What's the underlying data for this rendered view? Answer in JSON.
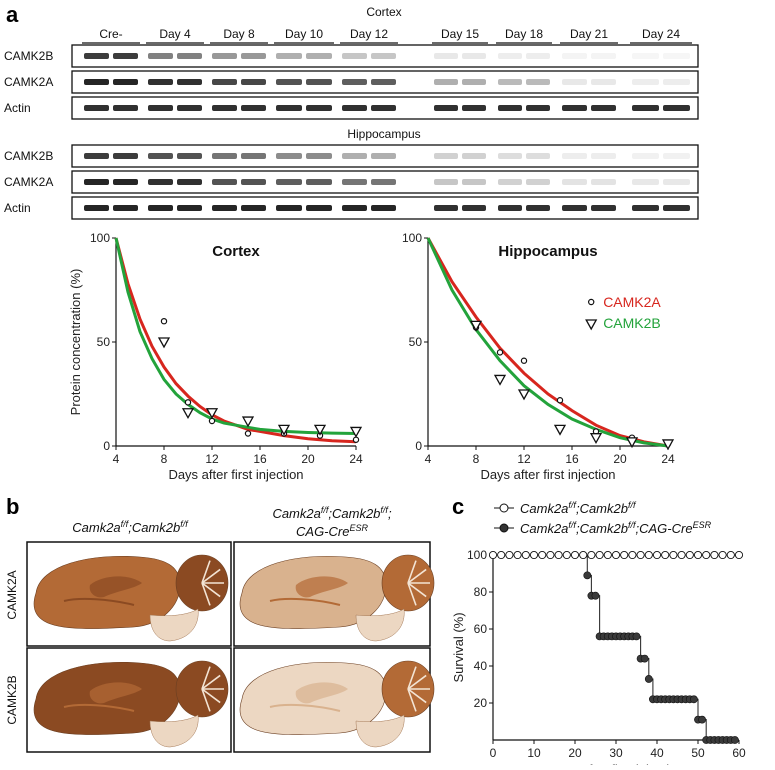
{
  "panel_labels": {
    "a": "a",
    "b": "b",
    "c": "c"
  },
  "blots": {
    "cortex_title": "Cortex",
    "hippocampus_title": "Hippocampus",
    "lane_groups": [
      "Cre-",
      "Day 4",
      "Day 8",
      "Day 10",
      "Day 12",
      "Day 15",
      "Day 18",
      "Day 21",
      "Day 24"
    ],
    "cortex_rows": [
      "CAMK2B",
      "CAMK2A",
      "Actin"
    ],
    "hippocampus_rows": [
      "CAMK2B",
      "CAMK2A",
      "Actin"
    ]
  },
  "stains": {
    "col_headers": [
      {
        "l1_base": "Camk2a",
        "l1_sup": "f/f",
        "l1_sep": ";",
        "l1_base2": "Camk2b",
        "l1_sup2": "f/f",
        "l2": ""
      },
      {
        "l1_base": "Camk2a",
        "l1_sup": "f/f",
        "l1_sep": ";",
        "l1_base2": "Camk2b",
        "l1_sup2": "f/f",
        "l1_tail": ";",
        "l2_base": "CAG-Cre",
        "l2_sup": "ESR"
      }
    ],
    "row_labels": [
      "CAMK2A",
      "CAMK2B"
    ],
    "colors": {
      "strong": "#8b4a22",
      "medium": "#b36a36",
      "weak": "#d9b28e",
      "pale": "#ecd7c2"
    }
  },
  "chart_data": [
    {
      "type": "scatter",
      "title": "Cortex",
      "ylabel": "Protein concentration (%)",
      "xlabel": "Days after first injection",
      "xlim": [
        4,
        24
      ],
      "ylim": [
        0,
        100
      ],
      "xticks": [
        4,
        8,
        12,
        16,
        20,
        24
      ],
      "yticks": [
        0,
        50,
        100
      ],
      "series": [
        {
          "name": "CAMK2A",
          "color": "#d7261e",
          "marker": "circle",
          "points": [
            [
              8,
              60
            ],
            [
              10,
              21
            ],
            [
              12,
              12
            ],
            [
              15,
              6
            ],
            [
              18,
              6
            ],
            [
              21,
              5
            ],
            [
              24,
              3
            ]
          ],
          "fit": [
            [
              4,
              100
            ],
            [
              5,
              78
            ],
            [
              6,
              61
            ],
            [
              7,
              48
            ],
            [
              8,
              38
            ],
            [
              9,
              30
            ],
            [
              10,
              24
            ],
            [
              11,
              19
            ],
            [
              12,
              15
            ],
            [
              13,
              12
            ],
            [
              14,
              10
            ],
            [
              15,
              8
            ],
            [
              16,
              7
            ],
            [
              18,
              5
            ],
            [
              20,
              3.5
            ],
            [
              22,
              2.5
            ],
            [
              24,
              2
            ]
          ]
        },
        {
          "name": "CAMK2B",
          "color": "#23a33b",
          "marker": "triangle",
          "points": [
            [
              8,
              50
            ],
            [
              10,
              16
            ],
            [
              12,
              16
            ],
            [
              15,
              12
            ],
            [
              18,
              8
            ],
            [
              21,
              8
            ],
            [
              24,
              7
            ]
          ],
          "fit": [
            [
              4,
              100
            ],
            [
              5,
              74
            ],
            [
              6,
              55
            ],
            [
              7,
              42
            ],
            [
              8,
              32
            ],
            [
              9,
              25
            ],
            [
              10,
              20
            ],
            [
              11,
              16
            ],
            [
              12,
              13
            ],
            [
              13,
              11
            ],
            [
              14,
              10
            ],
            [
              15,
              9
            ],
            [
              16,
              8
            ],
            [
              18,
              7
            ],
            [
              20,
              6.5
            ],
            [
              22,
              6.2
            ],
            [
              24,
              6
            ]
          ]
        }
      ]
    },
    {
      "type": "scatter",
      "title": "Hippocampus",
      "ylabel": "",
      "xlabel": "Days after first injection",
      "xlim": [
        4,
        24
      ],
      "ylim": [
        0,
        100
      ],
      "xticks": [
        4,
        8,
        12,
        16,
        20,
        24
      ],
      "yticks": [
        0,
        50,
        100
      ],
      "legend": [
        "CAMK2A",
        "CAMK2B"
      ],
      "series": [
        {
          "name": "CAMK2A",
          "color": "#d7261e",
          "marker": "circle",
          "points": [
            [
              8,
              57
            ],
            [
              10,
              45
            ],
            [
              12,
              41
            ],
            [
              15,
              22
            ],
            [
              18,
              7
            ],
            [
              21,
              4
            ],
            [
              24,
              1
            ]
          ],
          "fit": [
            [
              4,
              100
            ],
            [
              6,
              79
            ],
            [
              8,
              62
            ],
            [
              10,
              47
            ],
            [
              12,
              35
            ],
            [
              14,
              25
            ],
            [
              16,
              17
            ],
            [
              18,
              10
            ],
            [
              20,
              5
            ],
            [
              22,
              2
            ],
            [
              24,
              0
            ]
          ]
        },
        {
          "name": "CAMK2B",
          "color": "#23a33b",
          "marker": "triangle",
          "points": [
            [
              8,
              58
            ],
            [
              10,
              32
            ],
            [
              12,
              25
            ],
            [
              15,
              8
            ],
            [
              18,
              4
            ],
            [
              21,
              2
            ],
            [
              24,
              1
            ]
          ],
          "fit": [
            [
              4,
              100
            ],
            [
              6,
              75
            ],
            [
              8,
              56
            ],
            [
              10,
              41
            ],
            [
              12,
              29
            ],
            [
              14,
              20
            ],
            [
              16,
              13
            ],
            [
              18,
              8
            ],
            [
              20,
              4
            ],
            [
              22,
              1.5
            ],
            [
              24,
              0
            ]
          ]
        }
      ]
    },
    {
      "type": "line",
      "ylabel": "Survival (%)",
      "xlabel": "Days after first injection",
      "xlim": [
        0,
        60
      ],
      "ylim": [
        0,
        100
      ],
      "xticks": [
        0,
        10,
        20,
        30,
        40,
        50,
        60
      ],
      "yticks": [
        20,
        40,
        60,
        80,
        100
      ],
      "legend": [
        {
          "base": "Camk2a",
          "sup": "f/f",
          "sep": ";",
          "base2": "Camk2b",
          "sup2": "f/f",
          "tail": "",
          "base3": "",
          "sup3": ""
        },
        {
          "base": "Camk2a",
          "sup": "f/f",
          "sep": ";",
          "base2": "Camk2b",
          "sup2": "f/f",
          "tail": ";",
          "base3": "CAG-Cre",
          "sup3": "ESR"
        }
      ],
      "series": [
        {
          "marker": "open-circle",
          "color": "#111111",
          "steps": [
            [
              0,
              100
            ],
            [
              60,
              100
            ]
          ]
        },
        {
          "marker": "filled-circle",
          "color": "#333333",
          "steps": [
            [
              0,
              100
            ],
            [
              23,
              100
            ],
            [
              23,
              89
            ],
            [
              24,
              89
            ],
            [
              24,
              78
            ],
            [
              26,
              78
            ],
            [
              26,
              56
            ],
            [
              36,
              56
            ],
            [
              36,
              44
            ],
            [
              38,
              44
            ],
            [
              38,
              33
            ],
            [
              39,
              33
            ],
            [
              39,
              22
            ],
            [
              50,
              22
            ],
            [
              50,
              11
            ],
            [
              52,
              11
            ],
            [
              52,
              0
            ],
            [
              60,
              0
            ]
          ]
        }
      ]
    }
  ]
}
